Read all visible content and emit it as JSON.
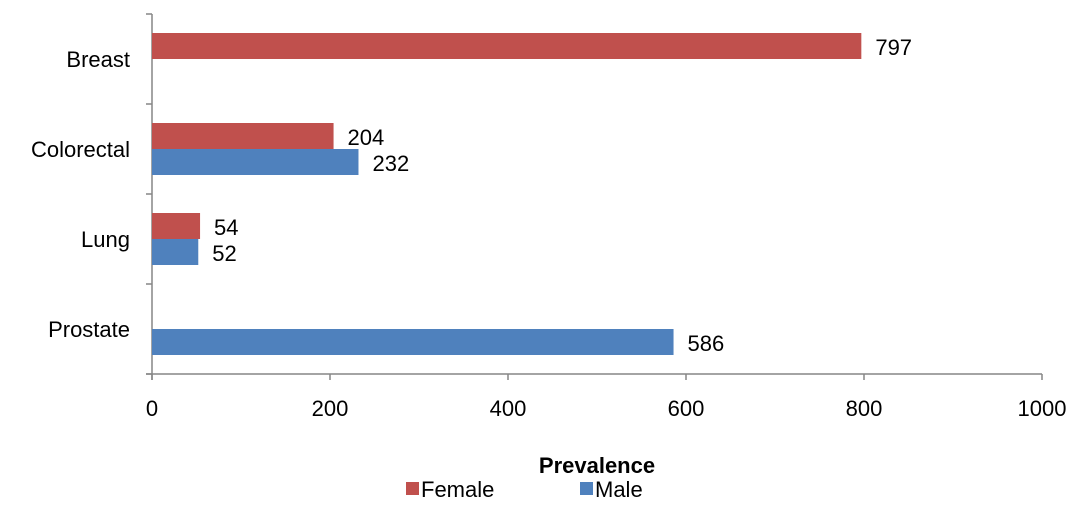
{
  "chart_data": {
    "type": "bar",
    "orientation": "horizontal",
    "title": "",
    "xlabel": "Prevalence",
    "ylabel": "",
    "categories": [
      "Breast",
      "Colorectal",
      "Lung",
      "Prostate"
    ],
    "series": [
      {
        "name": "Female",
        "color": "#C0504D",
        "values": [
          797,
          204,
          54,
          null
        ]
      },
      {
        "name": "Male",
        "color": "#4F81BD",
        "values": [
          null,
          232,
          52,
          586
        ]
      }
    ],
    "xlim": [
      0,
      1000
    ],
    "xticks": [
      "0",
      "200",
      "400",
      "600",
      "800",
      "1000"
    ],
    "grid": false,
    "legend_position": "bottom",
    "data_labels": true
  }
}
